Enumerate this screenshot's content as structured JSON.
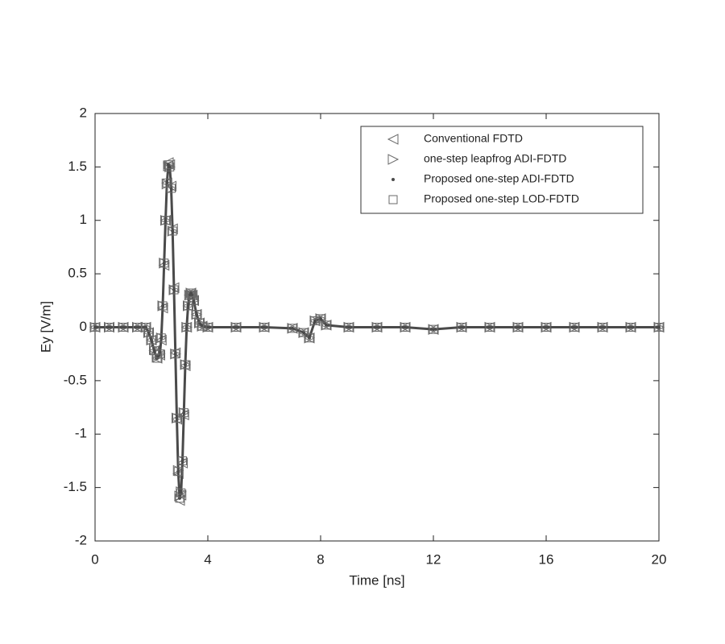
{
  "chart_data": {
    "type": "scatter",
    "xlabel": "Time [ns]",
    "ylabel": "Ey [V/m]",
    "xlim": [
      0,
      20
    ],
    "ylim": [
      -2,
      2
    ],
    "xticks": [
      0,
      4,
      8,
      12,
      16,
      20
    ],
    "yticks": [
      -2,
      -1.5,
      -1,
      -0.5,
      0,
      0.5,
      1,
      1.5,
      2
    ],
    "legend": "upper right",
    "grid": false,
    "x": [
      0,
      0.5,
      1,
      1.5,
      1.8,
      1.9,
      2.0,
      2.1,
      2.2,
      2.3,
      2.35,
      2.4,
      2.45,
      2.5,
      2.55,
      2.6,
      2.65,
      2.7,
      2.75,
      2.8,
      2.85,
      2.9,
      2.95,
      3.0,
      3.05,
      3.1,
      3.15,
      3.2,
      3.25,
      3.3,
      3.35,
      3.4,
      3.45,
      3.5,
      3.6,
      3.7,
      3.8,
      4.0,
      5,
      6,
      7,
      7.4,
      7.6,
      7.8,
      8.0,
      8.2,
      9,
      10,
      11,
      12,
      13,
      14,
      15,
      16,
      17,
      18,
      19,
      20
    ],
    "series": [
      {
        "name": "Conventional FDTD",
        "marker": "triangle-left",
        "color": "#6a6a6a",
        "values": [
          0,
          0,
          0,
          0,
          0,
          -0.05,
          -0.12,
          -0.22,
          -0.29,
          -0.26,
          -0.12,
          0.18,
          0.58,
          1.0,
          1.35,
          1.54,
          1.52,
          1.32,
          0.92,
          0.37,
          -0.24,
          -0.86,
          -1.37,
          -1.62,
          -1.57,
          -1.27,
          -0.82,
          -0.36,
          0.0,
          0.2,
          0.3,
          0.32,
          0.3,
          0.25,
          0.12,
          0.04,
          0.01,
          0,
          0,
          0,
          -0.01,
          -0.05,
          -0.1,
          0.06,
          0.08,
          0.02,
          0,
          0,
          0,
          -0.02,
          0,
          0,
          0,
          0,
          0,
          0,
          0,
          0
        ]
      },
      {
        "name": "one-step leapfrog ADI-FDTD",
        "marker": "triangle-right",
        "color": "#6a6a6a",
        "values": [
          0,
          0,
          0,
          0,
          0,
          -0.05,
          -0.12,
          -0.21,
          -0.28,
          -0.25,
          -0.1,
          0.2,
          0.6,
          1.0,
          1.34,
          1.51,
          1.5,
          1.3,
          0.9,
          0.35,
          -0.25,
          -0.85,
          -1.34,
          -1.58,
          -1.54,
          -1.25,
          -0.8,
          -0.35,
          0.0,
          0.2,
          0.3,
          0.32,
          0.3,
          0.25,
          0.12,
          0.04,
          0.01,
          0,
          0,
          0,
          -0.01,
          -0.05,
          -0.1,
          0.06,
          0.08,
          0.02,
          0,
          0,
          0,
          -0.02,
          0,
          0,
          0,
          0,
          0,
          0,
          0,
          0
        ]
      },
      {
        "name": "Proposed one-step ADI-FDTD",
        "marker": "dot",
        "color": "#4a4a4a",
        "values": [
          0,
          0,
          0,
          0,
          0,
          -0.05,
          -0.12,
          -0.22,
          -0.29,
          -0.25,
          -0.1,
          0.2,
          0.6,
          1.0,
          1.35,
          1.52,
          1.5,
          1.3,
          0.9,
          0.35,
          -0.25,
          -0.85,
          -1.35,
          -1.6,
          -1.55,
          -1.25,
          -0.8,
          -0.35,
          0.0,
          0.2,
          0.3,
          0.32,
          0.3,
          0.25,
          0.12,
          0.04,
          0.01,
          0,
          0,
          0,
          -0.01,
          -0.05,
          -0.1,
          0.06,
          0.08,
          0.02,
          0,
          0,
          0,
          -0.02,
          0,
          0,
          0,
          0,
          0,
          0,
          0,
          0
        ]
      },
      {
        "name": "Proposed one-step LOD-FDTD",
        "marker": "square",
        "color": "#6a6a6a",
        "values": [
          0,
          0,
          0,
          0,
          0,
          -0.05,
          -0.12,
          -0.22,
          -0.29,
          -0.25,
          -0.1,
          0.2,
          0.6,
          1.0,
          1.35,
          1.52,
          1.5,
          1.3,
          0.9,
          0.35,
          -0.25,
          -0.85,
          -1.35,
          -1.6,
          -1.55,
          -1.25,
          -0.8,
          -0.35,
          0.0,
          0.2,
          0.3,
          0.32,
          0.3,
          0.25,
          0.12,
          0.04,
          0.01,
          0,
          0,
          0,
          -0.01,
          -0.05,
          -0.1,
          0.06,
          0.08,
          0.02,
          0,
          0,
          0,
          -0.02,
          0,
          0,
          0,
          0,
          0,
          0,
          0,
          0
        ]
      }
    ]
  }
}
